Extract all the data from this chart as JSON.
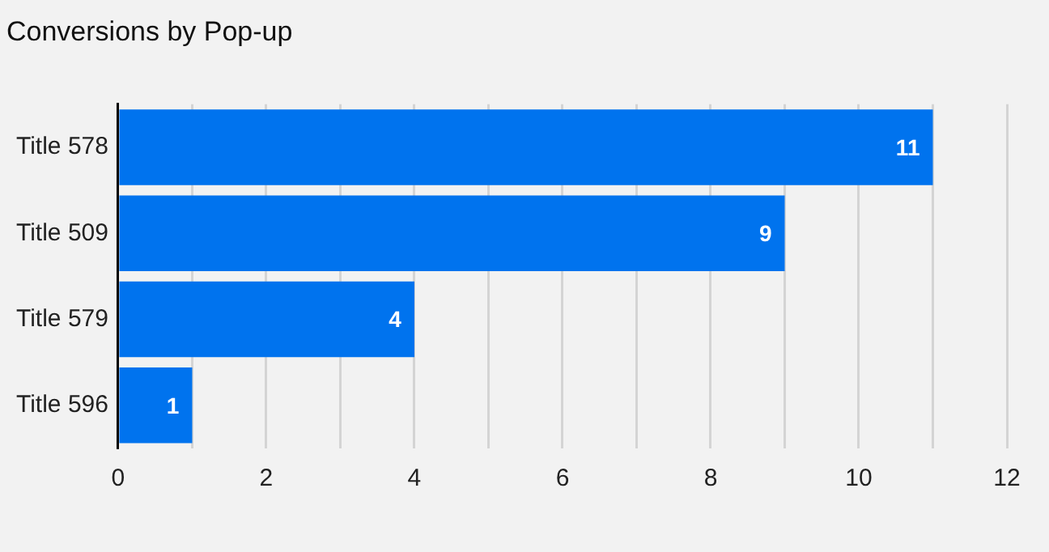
{
  "chart_data": {
    "type": "bar",
    "orientation": "horizontal",
    "title": "Conversions by Pop-up",
    "categories": [
      "Title 578",
      "Title 509",
      "Title 579",
      "Title 596"
    ],
    "values": [
      11,
      9,
      4,
      1
    ],
    "color": "#0073ee",
    "xlim": [
      0,
      12
    ],
    "xticks": [
      0,
      {
        "value": 1,
        "label": null
      },
      2,
      {
        "value": 3,
        "label": null
      },
      4,
      {
        "value": 5,
        "label": null
      },
      6,
      {
        "value": 7,
        "label": null
      },
      8,
      {
        "value": 9,
        "label": null
      },
      10,
      {
        "value": 11,
        "label": null
      },
      12
    ],
    "grid": "x",
    "data_labels": true
  }
}
